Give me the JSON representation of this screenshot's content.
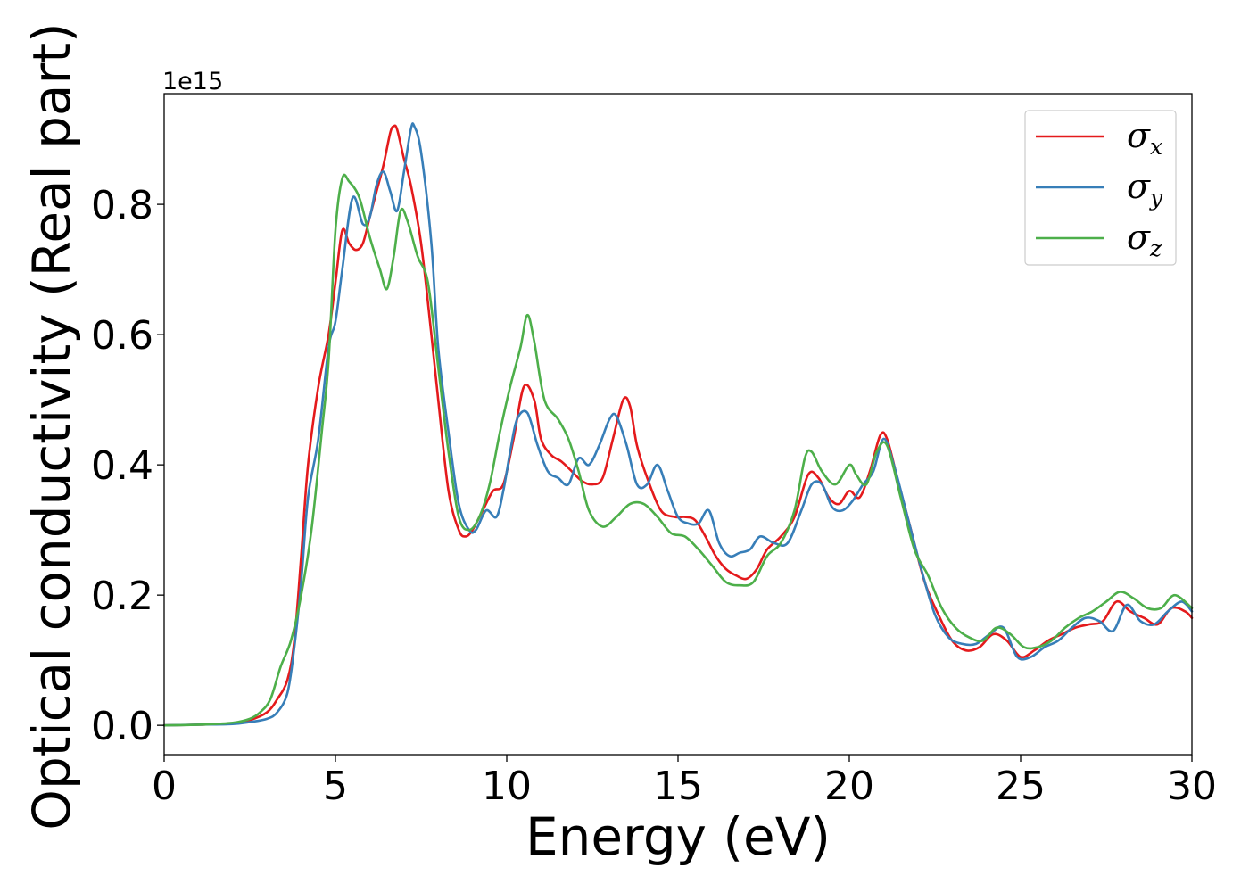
{
  "chart_data": {
    "type": "line",
    "xlabel": "Energy (eV)",
    "ylabel": "Optical conductivity (Real part)",
    "y_offset_label": "1e15",
    "xlim": [
      0,
      30
    ],
    "ylim": [
      -0.045,
      0.97
    ],
    "x_ticks": [
      {
        "value": 0,
        "label": "0"
      },
      {
        "value": 5,
        "label": "5"
      },
      {
        "value": 10,
        "label": "10"
      },
      {
        "value": 15,
        "label": "15"
      },
      {
        "value": 20,
        "label": "20"
      },
      {
        "value": 25,
        "label": "25"
      },
      {
        "value": 30,
        "label": "30"
      }
    ],
    "y_ticks": [
      {
        "value": 0.0,
        "label": "0.0"
      },
      {
        "value": 0.2,
        "label": "0.2"
      },
      {
        "value": 0.4,
        "label": "0.4"
      },
      {
        "value": 0.6,
        "label": "0.6"
      },
      {
        "value": 0.8,
        "label": "0.8"
      }
    ],
    "grid": false,
    "legend_position": "top-right",
    "series": [
      {
        "name": "σx",
        "symbol": "σ",
        "subscript": "x",
        "color": "#e41a1c",
        "x": [
          0,
          1,
          2,
          2.5,
          3,
          3.3,
          3.6,
          3.8,
          4,
          4.2,
          4.5,
          4.8,
          5,
          5.2,
          5.4,
          5.6,
          5.8,
          6,
          6.2,
          6.4,
          6.6,
          6.7,
          6.8,
          7,
          7.2,
          7.5,
          7.8,
          8,
          8.3,
          8.6,
          8.8,
          9,
          9.3,
          9.6,
          9.9,
          10.2,
          10.5,
          10.8,
          11,
          11.3,
          11.6,
          11.9,
          12.2,
          12.5,
          12.8,
          13.1,
          13.4,
          13.6,
          13.8,
          14.1,
          14.5,
          14.9,
          15.2,
          15.5,
          15.8,
          16.1,
          16.4,
          16.7,
          17,
          17.3,
          17.6,
          18,
          18.4,
          18.8,
          19.1,
          19.4,
          19.7,
          20,
          20.3,
          20.6,
          20.9,
          21.1,
          21.4,
          21.8,
          22.2,
          22.6,
          23,
          23.4,
          23.8,
          24.2,
          24.6,
          25,
          25.4,
          25.8,
          26.2,
          26.6,
          27,
          27.4,
          27.8,
          28.2,
          28.6,
          29,
          29.4,
          29.8,
          30
        ],
        "y": [
          0,
          0.001,
          0.003,
          0.008,
          0.02,
          0.04,
          0.07,
          0.13,
          0.26,
          0.4,
          0.52,
          0.6,
          0.68,
          0.76,
          0.74,
          0.73,
          0.74,
          0.78,
          0.82,
          0.86,
          0.91,
          0.92,
          0.915,
          0.87,
          0.83,
          0.74,
          0.6,
          0.5,
          0.36,
          0.3,
          0.29,
          0.3,
          0.33,
          0.36,
          0.37,
          0.44,
          0.52,
          0.5,
          0.44,
          0.415,
          0.405,
          0.39,
          0.375,
          0.37,
          0.38,
          0.44,
          0.5,
          0.49,
          0.43,
          0.38,
          0.33,
          0.32,
          0.32,
          0.315,
          0.29,
          0.26,
          0.24,
          0.23,
          0.225,
          0.24,
          0.27,
          0.29,
          0.32,
          0.385,
          0.38,
          0.35,
          0.34,
          0.36,
          0.35,
          0.39,
          0.445,
          0.44,
          0.38,
          0.3,
          0.22,
          0.17,
          0.13,
          0.115,
          0.12,
          0.14,
          0.13,
          0.105,
          0.115,
          0.13,
          0.14,
          0.15,
          0.155,
          0.16,
          0.19,
          0.175,
          0.165,
          0.155,
          0.18,
          0.175,
          0.165
        ]
      },
      {
        "name": "σy",
        "symbol": "σ",
        "subscript": "y",
        "color": "#377eb8",
        "x": [
          0,
          1,
          2,
          2.5,
          3,
          3.3,
          3.6,
          3.8,
          4,
          4.2,
          4.5,
          4.8,
          5,
          5.2,
          5.5,
          5.8,
          6,
          6.2,
          6.4,
          6.6,
          6.8,
          7,
          7.2,
          7.3,
          7.5,
          7.8,
          8,
          8.3,
          8.6,
          8.9,
          9.1,
          9.4,
          9.7,
          9.9,
          10.1,
          10.3,
          10.6,
          10.9,
          11.2,
          11.5,
          11.8,
          12.1,
          12.4,
          12.7,
          13,
          13.2,
          13.5,
          13.8,
          14.1,
          14.4,
          14.7,
          15,
          15.3,
          15.6,
          15.9,
          16.2,
          16.5,
          16.8,
          17.1,
          17.4,
          17.8,
          18.2,
          18.6,
          18.9,
          19.2,
          19.5,
          19.8,
          20.1,
          20.4,
          20.7,
          21,
          21.3,
          21.7,
          22.1,
          22.5,
          22.9,
          23.3,
          23.7,
          24.1,
          24.5,
          24.9,
          25.3,
          25.7,
          26.1,
          26.5,
          26.9,
          27.3,
          27.7,
          28.1,
          28.5,
          28.9,
          29.3,
          29.7,
          30
        ],
        "y": [
          0,
          0.001,
          0.002,
          0.005,
          0.01,
          0.02,
          0.05,
          0.12,
          0.22,
          0.35,
          0.44,
          0.58,
          0.62,
          0.7,
          0.81,
          0.77,
          0.78,
          0.83,
          0.85,
          0.82,
          0.79,
          0.85,
          0.915,
          0.92,
          0.88,
          0.74,
          0.58,
          0.45,
          0.34,
          0.3,
          0.3,
          0.33,
          0.32,
          0.36,
          0.42,
          0.47,
          0.48,
          0.43,
          0.39,
          0.38,
          0.37,
          0.41,
          0.4,
          0.43,
          0.47,
          0.475,
          0.43,
          0.37,
          0.37,
          0.4,
          0.36,
          0.32,
          0.31,
          0.31,
          0.33,
          0.28,
          0.26,
          0.265,
          0.27,
          0.29,
          0.28,
          0.28,
          0.33,
          0.37,
          0.37,
          0.335,
          0.33,
          0.345,
          0.37,
          0.39,
          0.44,
          0.4,
          0.32,
          0.24,
          0.17,
          0.135,
          0.125,
          0.125,
          0.14,
          0.15,
          0.105,
          0.105,
          0.12,
          0.13,
          0.15,
          0.165,
          0.16,
          0.145,
          0.185,
          0.16,
          0.155,
          0.175,
          0.19,
          0.175
        ]
      },
      {
        "name": "σz",
        "symbol": "σ",
        "subscript": "z",
        "color": "#4daf4a",
        "x": [
          0,
          1,
          2,
          2.5,
          2.8,
          3.1,
          3.4,
          3.7,
          4,
          4.3,
          4.6,
          4.8,
          5,
          5.2,
          5.4,
          5.7,
          6,
          6.3,
          6.5,
          6.7,
          6.9,
          7.1,
          7.4,
          7.7,
          8,
          8.3,
          8.6,
          8.9,
          9.2,
          9.5,
          9.8,
          10.1,
          10.4,
          10.6,
          10.8,
          11.1,
          11.5,
          11.8,
          12.1,
          12.4,
          12.8,
          13.2,
          13.6,
          14,
          14.4,
          14.8,
          15.2,
          15.6,
          16,
          16.4,
          16.8,
          17.2,
          17.6,
          18,
          18.4,
          18.7,
          18.9,
          19.2,
          19.6,
          20,
          20.2,
          20.5,
          20.8,
          21.1,
          21.5,
          21.9,
          22.3,
          22.7,
          23.1,
          23.5,
          23.9,
          24.3,
          24.7,
          25.1,
          25.5,
          25.9,
          26.3,
          26.7,
          27.1,
          27.5,
          27.9,
          28.3,
          28.7,
          29.1,
          29.5,
          30
        ],
        "y": [
          0,
          0.001,
          0.004,
          0.01,
          0.02,
          0.04,
          0.09,
          0.13,
          0.2,
          0.3,
          0.45,
          0.56,
          0.76,
          0.84,
          0.835,
          0.81,
          0.75,
          0.7,
          0.67,
          0.72,
          0.79,
          0.775,
          0.72,
          0.68,
          0.55,
          0.42,
          0.32,
          0.3,
          0.32,
          0.37,
          0.45,
          0.52,
          0.58,
          0.63,
          0.59,
          0.5,
          0.47,
          0.44,
          0.39,
          0.33,
          0.305,
          0.32,
          0.34,
          0.34,
          0.32,
          0.295,
          0.29,
          0.27,
          0.245,
          0.22,
          0.215,
          0.22,
          0.26,
          0.28,
          0.33,
          0.41,
          0.42,
          0.39,
          0.37,
          0.4,
          0.385,
          0.37,
          0.42,
          0.43,
          0.35,
          0.27,
          0.23,
          0.18,
          0.15,
          0.135,
          0.13,
          0.15,
          0.14,
          0.12,
          0.12,
          0.13,
          0.15,
          0.165,
          0.175,
          0.19,
          0.205,
          0.195,
          0.18,
          0.18,
          0.2,
          0.18
        ]
      }
    ]
  }
}
